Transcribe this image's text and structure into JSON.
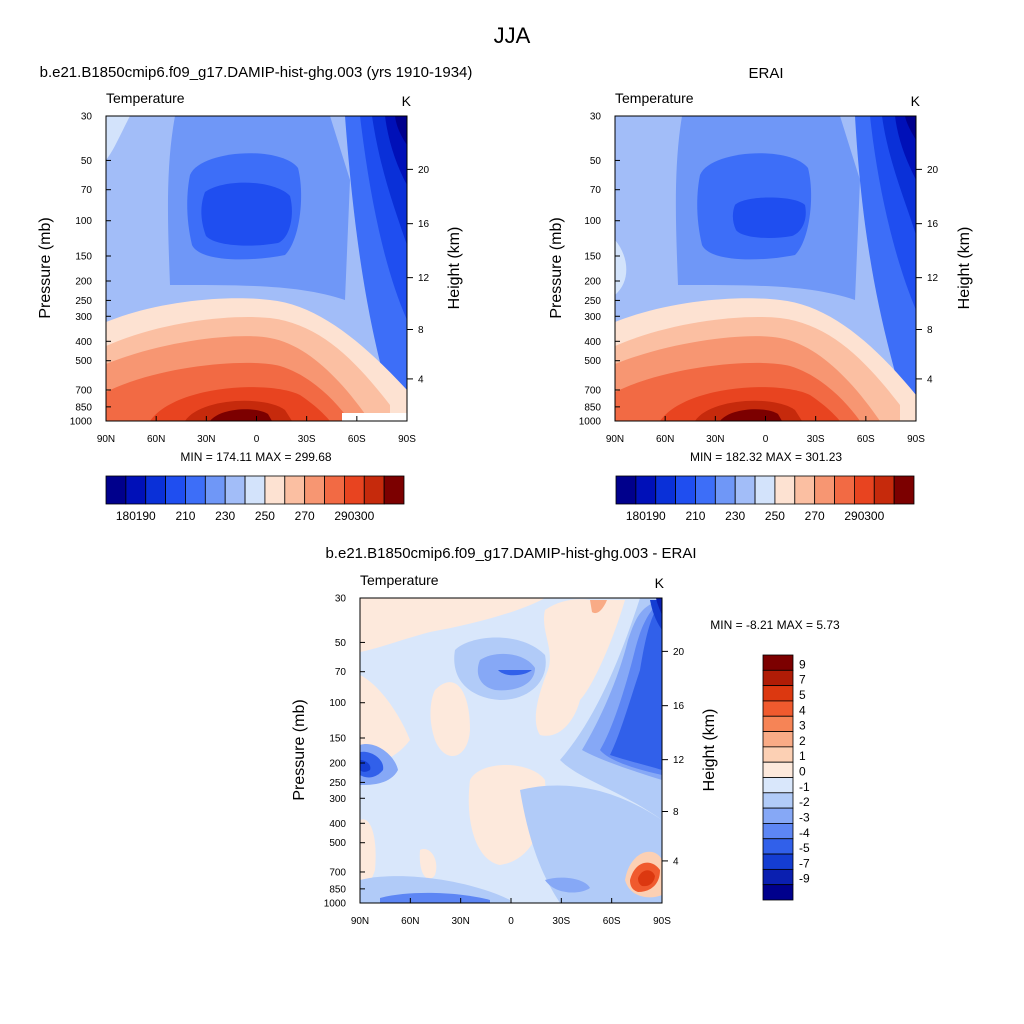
{
  "figure": {
    "title": "JJA"
  },
  "chart_data": [
    {
      "type": "heatmap",
      "title": "b.e21.B1850cmip6.f09_g17.DAMIP-hist-ghg.003 (yrs 1910-1934)",
      "subtitle_left": "Temperature",
      "units": "K",
      "ylabel": "Pressure (mb)",
      "ylabel_right": "Height (km)",
      "x_ticks": [
        "90N",
        "60N",
        "30N",
        "0",
        "30S",
        "60S",
        "90S"
      ],
      "y_ticks": [
        30,
        50,
        70,
        100,
        150,
        200,
        250,
        300,
        400,
        500,
        700,
        850,
        1000
      ],
      "height_ticks": [
        20,
        16,
        12,
        8,
        4
      ],
      "ylim": [
        1000,
        30
      ],
      "min_max_text": "MIN = 174.11  MAX = 299.68",
      "colorbar_levels": [
        180,
        190,
        200,
        210,
        220,
        230,
        240,
        250,
        260,
        270,
        280,
        290,
        300
      ],
      "colorbar_labels": [
        "180",
        "190",
        "210",
        "230",
        "250",
        "270",
        "290",
        "300"
      ],
      "colors": [
        "#00008c",
        "#0010b8",
        "#0a30d8",
        "#1f4ef0",
        "#3d6ef8",
        "#6f97f7",
        "#a2bdf8",
        "#d3e3fb",
        "#fde2d2",
        "#fbbfa2",
        "#f79672",
        "#f26a44",
        "#e84420",
        "#c62a0c",
        "#7c0000"
      ]
    },
    {
      "type": "heatmap",
      "title": "ERAI",
      "subtitle_left": "Temperature",
      "units": "K",
      "ylabel": "Pressure (mb)",
      "ylabel_right": "Height (km)",
      "x_ticks": [
        "90N",
        "60N",
        "30N",
        "0",
        "30S",
        "60S",
        "90S"
      ],
      "y_ticks": [
        30,
        50,
        70,
        100,
        150,
        200,
        250,
        300,
        400,
        500,
        700,
        850,
        1000
      ],
      "height_ticks": [
        20,
        16,
        12,
        8,
        4
      ],
      "ylim": [
        1000,
        30
      ],
      "min_max_text": "MIN = 182.32  MAX = 301.23",
      "colorbar_levels": [
        180,
        190,
        200,
        210,
        220,
        230,
        240,
        250,
        260,
        270,
        280,
        290,
        300
      ],
      "colorbar_labels": [
        "180",
        "190",
        "210",
        "230",
        "250",
        "270",
        "290",
        "300"
      ],
      "colors": [
        "#00008c",
        "#0010b8",
        "#0a30d8",
        "#1f4ef0",
        "#3d6ef8",
        "#6f97f7",
        "#a2bdf8",
        "#d3e3fb",
        "#fde2d2",
        "#fbbfa2",
        "#f79672",
        "#f26a44",
        "#e84420",
        "#c62a0c",
        "#7c0000"
      ]
    },
    {
      "type": "heatmap",
      "title": "b.e21.B1850cmip6.f09_g17.DAMIP-hist-ghg.003 - ERAI",
      "subtitle_left": "Temperature",
      "units": "K",
      "ylabel": "Pressure (mb)",
      "ylabel_right": "Height (km)",
      "x_ticks": [
        "90N",
        "60N",
        "30N",
        "0",
        "30S",
        "60S",
        "90S"
      ],
      "y_ticks": [
        30,
        50,
        70,
        100,
        150,
        200,
        250,
        300,
        400,
        500,
        700,
        850,
        1000
      ],
      "height_ticks": [
        20,
        16,
        12,
        8,
        4
      ],
      "ylim": [
        1000,
        30
      ],
      "min_max_text": "MIN =  -8.21  MAX =   5.73",
      "colorbar_levels": [
        9,
        7,
        5,
        4,
        3,
        2,
        1,
        0,
        -1,
        -2,
        -3,
        -4,
        -5,
        -7,
        -9
      ],
      "colorbar_labels": [
        "9",
        "7",
        "5",
        "4",
        "3",
        "2",
        "1",
        "0",
        "-1",
        "-2",
        "-3",
        "-4",
        "-5",
        "-7",
        "-9"
      ],
      "colors": [
        "#7c0000",
        "#b01c06",
        "#dc3810",
        "#f05a2e",
        "#f68456",
        "#f9ab86",
        "#fcd0b4",
        "#fde9dc",
        "#d9e7fb",
        "#b1cbf8",
        "#86a8f6",
        "#5d86f4",
        "#3160ea",
        "#143dd2",
        "#0a1fb0",
        "#00008c"
      ]
    }
  ]
}
